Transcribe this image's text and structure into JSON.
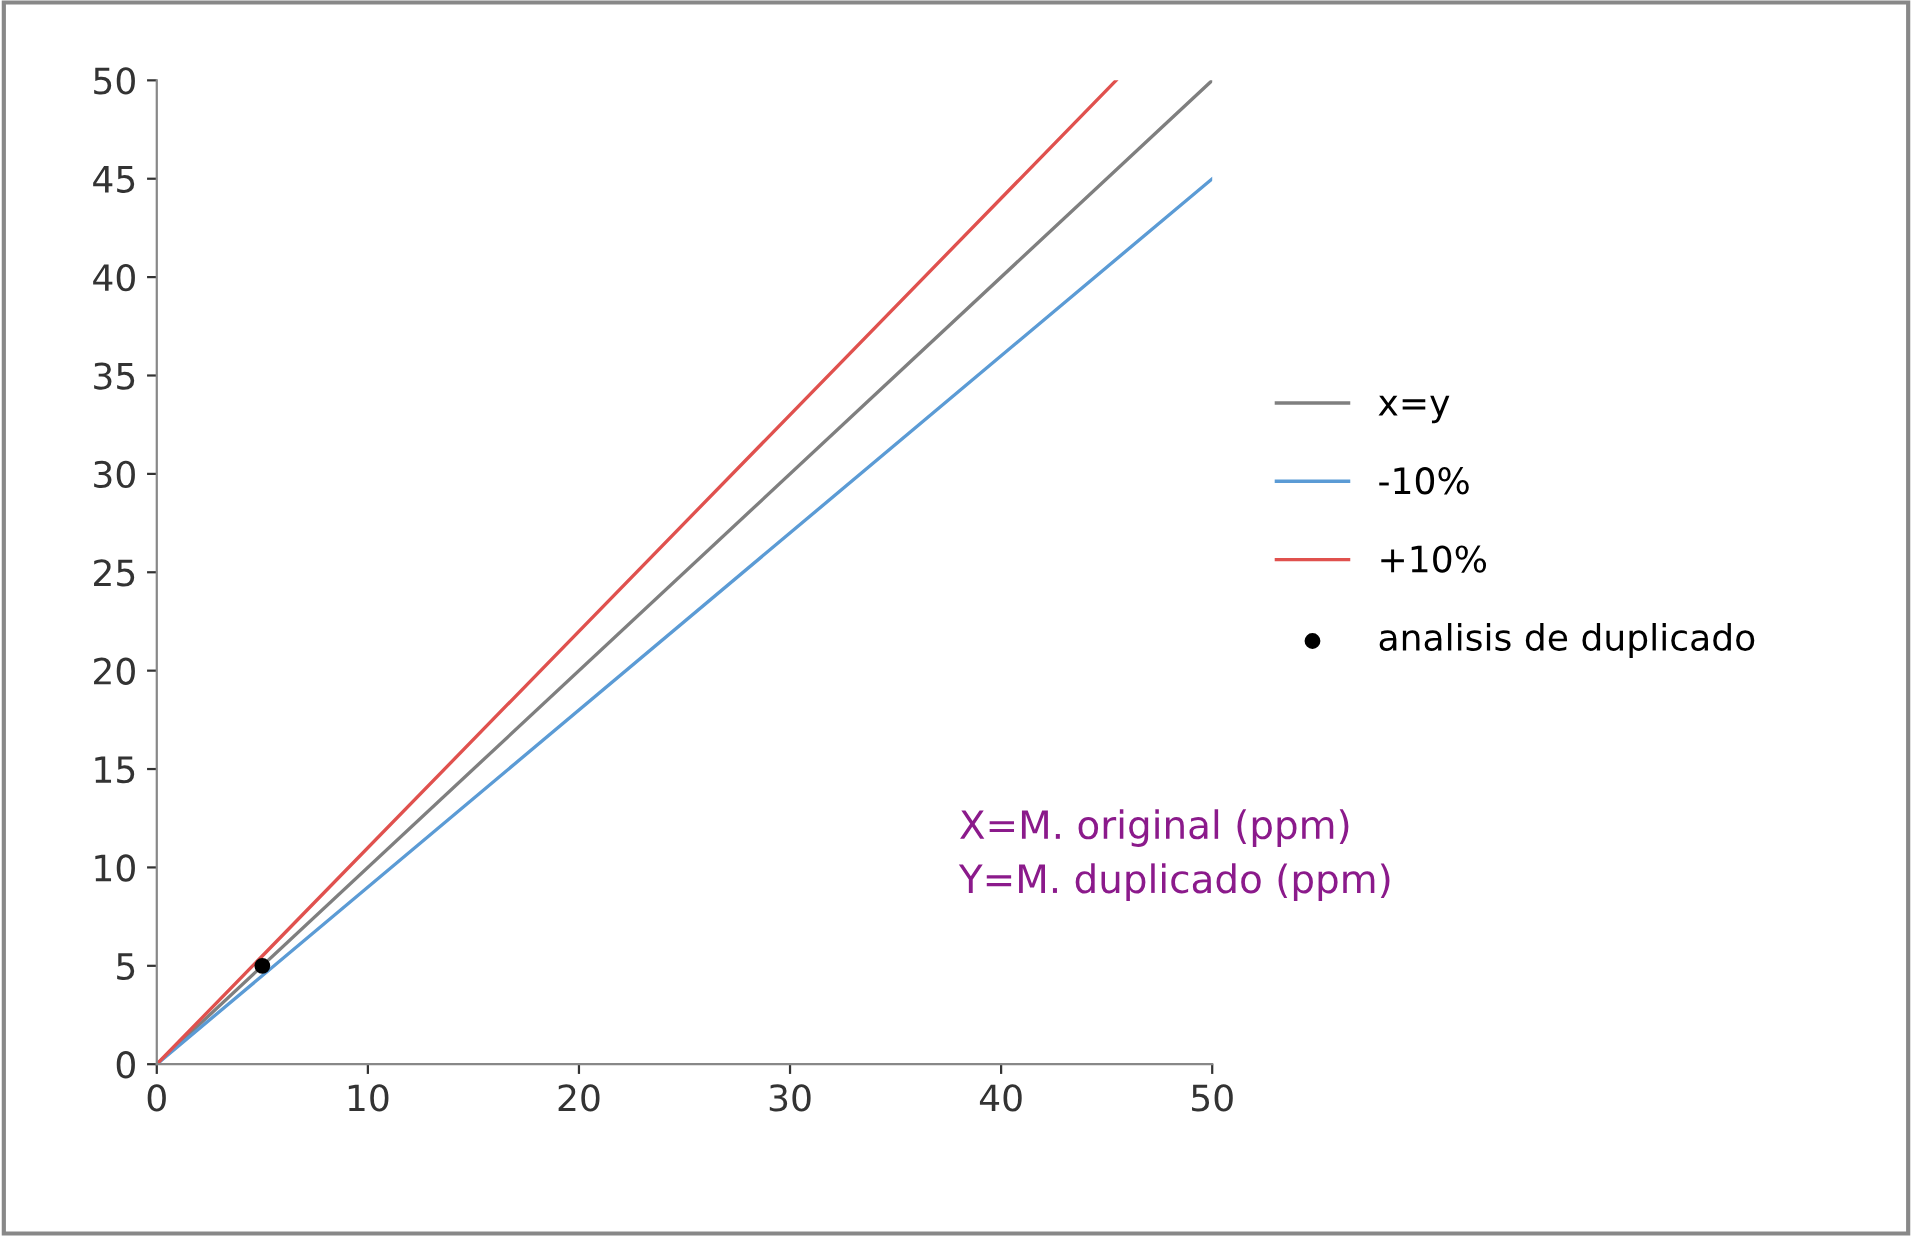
{
  "chart_data": {
    "type": "line",
    "xlim": [
      0,
      50
    ],
    "ylim": [
      0,
      50
    ],
    "xticks": [
      0,
      10,
      20,
      30,
      40,
      50
    ],
    "yticks": [
      0,
      5,
      10,
      15,
      20,
      25,
      30,
      35,
      40,
      45,
      50
    ],
    "grid": false,
    "legend": "right",
    "marker": "none",
    "series": [
      {
        "name": "x=y",
        "color": "#7f7f7f",
        "x": [
          0,
          50
        ],
        "values": [
          0,
          50
        ]
      },
      {
        "name": "-10%",
        "color": "#5b9bd5",
        "x": [
          0,
          50
        ],
        "values": [
          0,
          45
        ]
      },
      {
        "name": "+10%",
        "color": "#e0514e",
        "x": [
          0,
          45.45
        ],
        "values": [
          0,
          50
        ]
      },
      {
        "name": "analisis de duplicado",
        "type": "scatter",
        "marker": "circle",
        "color": "#000000",
        "x": [
          5
        ],
        "values": [
          5
        ]
      }
    ],
    "annotations": [
      "X=M. original (ppm)",
      "Y=M. duplicado (ppm)"
    ]
  }
}
